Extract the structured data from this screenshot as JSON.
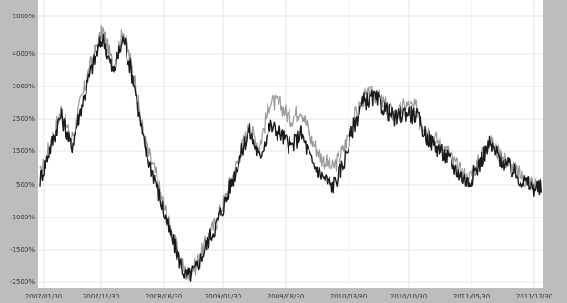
{
  "chart_data": {
    "type": "line",
    "title": "",
    "xlabel": "",
    "ylabel": "",
    "y_ticks": [
      "5000%",
      "4000%",
      "3000%",
      "2500%",
      "1500%",
      "500%",
      "-1000%",
      "-1500%",
      "-2500%"
    ],
    "x_ticks": [
      "2007/01/30",
      "2007/11/30",
      "2008/06/30",
      "2009/01/30",
      "2009/08/30",
      "2010/03/30",
      "2010/10/30",
      "2011/05/30",
      "2011/12/30"
    ],
    "ylim": [
      -2500,
      5000
    ],
    "grid": true,
    "colors": {
      "series_a": "#9a9a9a",
      "series_b": "#1a1a1a",
      "grid": "#e6e6e6",
      "frame": "#bdbdbd",
      "plot": "#ffffff"
    },
    "x": [
      0,
      0.5,
      1,
      1.5,
      2,
      2.5,
      3,
      3.5,
      4,
      4.5,
      5,
      5.5,
      6,
      6.5,
      7,
      7.5,
      8,
      8.5,
      9,
      9.5,
      10,
      10.5,
      11,
      11.5,
      12,
      12.5,
      13,
      13.5,
      14,
      14.5,
      15,
      15.5,
      16,
      16.5,
      17,
      17.5,
      18,
      18.5,
      19,
      19.5,
      20,
      20.5,
      21,
      21.5,
      22,
      22.5,
      23,
      23.5,
      24
    ],
    "series": [
      {
        "values": [
          500,
          1400,
          2350,
          1500,
          2700,
          3800,
          4600,
          3600,
          4600,
          3300,
          1500,
          600,
          -500,
          -1500,
          -2300,
          -2000,
          -1300,
          -700,
          100,
          1000,
          1900,
          1300,
          2600,
          2500,
          2100,
          2400,
          1500,
          1000,
          700,
          1200,
          2100,
          2700,
          2800,
          2500,
          2200,
          2500,
          2400,
          1800,
          1500,
          1200,
          700,
          400,
          900,
          1500,
          1100,
          800,
          500,
          300,
          200
        ]
      },
      {
        "values": [
          400,
          1300,
          2200,
          1300,
          2500,
          3600,
          4400,
          3400,
          4400,
          3100,
          1300,
          400,
          -700,
          -1600,
          -2400,
          -2100,
          -1400,
          -800,
          0,
          900,
          1800,
          1000,
          1900,
          1700,
          1300,
          1700,
          900,
          500,
          200,
          800,
          1900,
          2600,
          2700,
          2400,
          2100,
          2300,
          2200,
          1600,
          1300,
          1000,
          600,
          300,
          800,
          1400,
          1000,
          700,
          400,
          200,
          100
        ]
      }
    ]
  }
}
